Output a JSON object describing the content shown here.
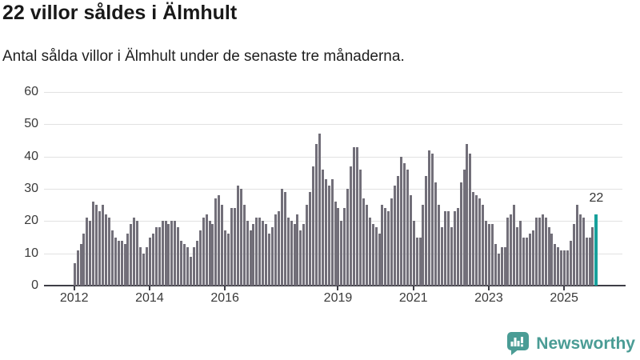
{
  "header": {
    "title": "22 villor såldes i Älmhult",
    "subtitle": "Antal sålda villor i Älmhult under de senaste tre månaderna."
  },
  "chart_data": {
    "type": "bar",
    "title": "22 villor såldes i Älmhult",
    "subtitle": "Antal sålda villor i Älmhult under de senaste tre månaderna.",
    "frequency": "monthly",
    "x_start_month": "2012-01",
    "x_end_month": "2025-11",
    "values": [
      7,
      11,
      13,
      16,
      21,
      20,
      26,
      25,
      23,
      25,
      22,
      21,
      17,
      15,
      14,
      14,
      13,
      16,
      19,
      21,
      20,
      12,
      10,
      12,
      15,
      16,
      18,
      18,
      20,
      20,
      19,
      20,
      20,
      18,
      14,
      13,
      12,
      9,
      12,
      14,
      17,
      21,
      22,
      20,
      19,
      27,
      28,
      25,
      17,
      16,
      24,
      24,
      31,
      30,
      25,
      20,
      17,
      19,
      21,
      21,
      20,
      19,
      16,
      18,
      22,
      23,
      30,
      29,
      21,
      20,
      19,
      22,
      17,
      19,
      25,
      29,
      37,
      44,
      47,
      36,
      33,
      31,
      33,
      26,
      24,
      20,
      24,
      30,
      37,
      43,
      43,
      36,
      27,
      25,
      21,
      19,
      18,
      16,
      25,
      24,
      23,
      27,
      31,
      34,
      40,
      38,
      36,
      28,
      20,
      15,
      15,
      25,
      34,
      42,
      41,
      32,
      25,
      18,
      23,
      23,
      18,
      23,
      24,
      32,
      36,
      44,
      41,
      29,
      28,
      27,
      25,
      20,
      19,
      19,
      13,
      10,
      12,
      12,
      21,
      22,
      25,
      18,
      20,
      15,
      15,
      16,
      17,
      21,
      21,
      22,
      21,
      18,
      16,
      13,
      12,
      11,
      11,
      11,
      14,
      19,
      25,
      22,
      21,
      15,
      15,
      18,
      22
    ],
    "highlight": {
      "position": "last",
      "value": 22,
      "label": "22"
    },
    "x_tick_labels": [
      "2012",
      "2014",
      "2016",
      "2019",
      "2021",
      "2023",
      "2025"
    ],
    "x_tick_years": [
      2012,
      2014,
      2016,
      2019,
      2021,
      2023,
      2025
    ],
    "y_ticks": [
      0,
      10,
      20,
      30,
      40,
      50,
      60
    ],
    "ylim": [
      0,
      60
    ],
    "grid": "horizontal",
    "legend": "none",
    "colors": {
      "bar": "#726f79",
      "highlight": "#17a09b",
      "gridline": "#e2e2e2",
      "axis": "#3e3e46",
      "tick_text": "#3a3a3a"
    }
  },
  "footer": {
    "brand": "Newsworthy",
    "logo_icon": "newsworthy-logo-icon"
  }
}
